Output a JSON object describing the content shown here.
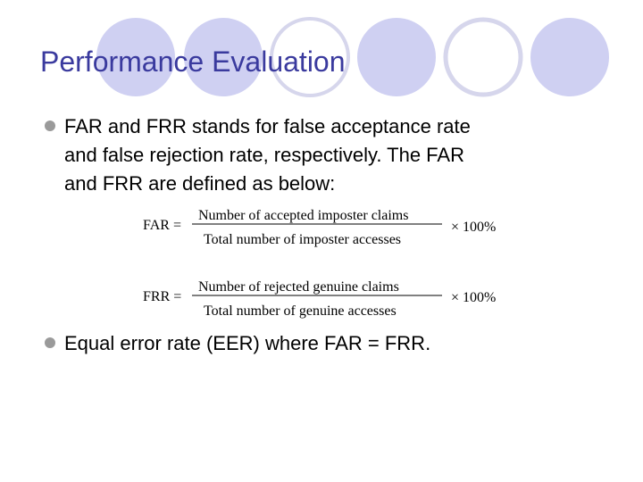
{
  "title": "Performance Evaluation",
  "bullets": [
    {
      "lines": [
        "FAR and FRR stands for false acceptance rate",
        "and false rejection rate, respectively. The FAR",
        "and FRR are defined as below:"
      ]
    },
    {
      "lines": [
        "Equal error rate (EER)  where FAR = FRR."
      ]
    }
  ],
  "formulas": [
    {
      "lhs": "FAR =",
      "numerator": "Number of accepted imposter claims",
      "denominator": "Total number of imposter accesses",
      "factor": "× 100%"
    },
    {
      "lhs": "FRR =",
      "numerator": "Number of rejected genuine claims",
      "denominator": "Total number of genuine accesses",
      "factor": "× 100%"
    }
  ]
}
